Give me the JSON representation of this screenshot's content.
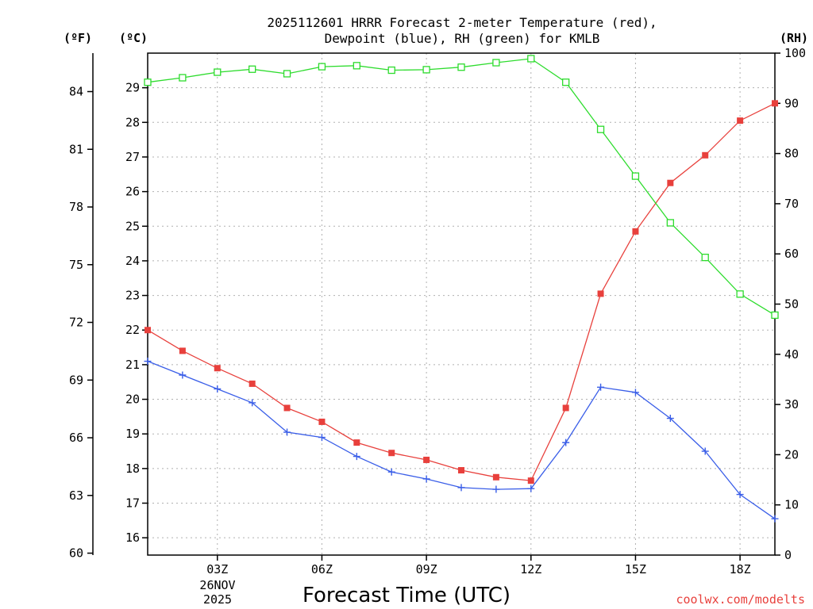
{
  "chart_data": {
    "type": "line",
    "title": [
      "2025112601 HRRR Forecast 2-meter Temperature (red),",
      "Dewpoint (blue), RH (green) for KMLB"
    ],
    "xlabel": "Forecast Time (UTC)",
    "x": [
      1,
      2,
      3,
      4,
      5,
      6,
      7,
      8,
      9,
      10,
      11,
      12,
      13,
      14,
      15,
      16,
      17,
      18,
      19
    ],
    "xlim": [
      1,
      19
    ],
    "x_ticks": [
      {
        "x": 3,
        "label": "03Z"
      },
      {
        "x": 6,
        "label": "06Z"
      },
      {
        "x": 9,
        "label": "09Z"
      },
      {
        "x": 12,
        "label": "12Z"
      },
      {
        "x": 15,
        "label": "15Z"
      },
      {
        "x": 18,
        "label": "18Z"
      }
    ],
    "date_label": [
      "26NOV",
      "2025"
    ],
    "axes": {
      "celsius": {
        "unit_label": "(ºC)",
        "range": [
          15.5,
          30.0
        ],
        "ticks": [
          16,
          17,
          18,
          19,
          20,
          21,
          22,
          23,
          24,
          25,
          26,
          27,
          28,
          29
        ]
      },
      "fahrenheit": {
        "unit_label": "(ºF)",
        "range": [
          59.9,
          86.0
        ],
        "ticks": [
          60,
          63,
          66,
          69,
          72,
          75,
          78,
          81,
          84
        ]
      },
      "rh": {
        "unit_label": "(RH)",
        "range": [
          0,
          100
        ],
        "ticks": [
          0,
          10,
          20,
          30,
          40,
          50,
          60,
          70,
          80,
          90,
          100
        ]
      }
    },
    "series": [
      {
        "name": "Temperature",
        "axis": "celsius",
        "color": "#e8403c",
        "marker": "filled-square",
        "values": [
          22.0,
          21.4,
          20.9,
          20.45,
          19.75,
          19.35,
          18.75,
          18.45,
          18.25,
          17.95,
          17.75,
          17.65,
          19.75,
          23.05,
          24.85,
          26.25,
          27.05,
          28.05,
          28.55
        ]
      },
      {
        "name": "Dewpoint",
        "axis": "celsius",
        "color": "#3a5ee8",
        "marker": "plus",
        "values": [
          21.1,
          20.7,
          20.3,
          19.9,
          19.05,
          18.9,
          18.35,
          17.9,
          17.7,
          17.45,
          17.4,
          17.42,
          18.75,
          20.35,
          20.2,
          19.45,
          18.5,
          17.25,
          16.55
        ]
      },
      {
        "name": "RH",
        "axis": "rh",
        "color": "#2ddc2d",
        "marker": "open-square",
        "values": [
          94.2,
          95.1,
          96.2,
          96.8,
          95.9,
          97.3,
          97.5,
          96.6,
          96.7,
          97.2,
          98.1,
          98.9,
          94.2,
          84.8,
          75.5,
          66.2,
          59.3,
          52.0,
          47.8
        ]
      }
    ],
    "grid": true
  },
  "credit": "coolwx.com/modelts"
}
